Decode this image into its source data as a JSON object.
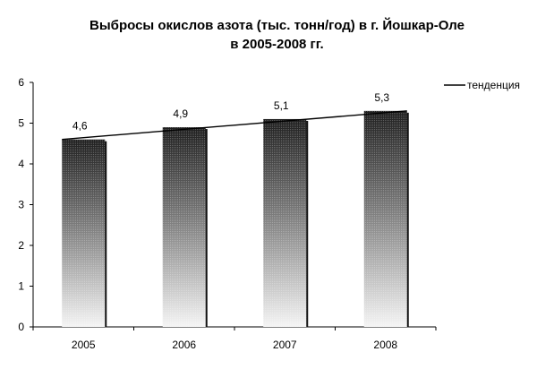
{
  "chart_data": {
    "type": "bar",
    "title_line1": "Выбросы окислов азота (тыс. тонн/год) в г. Йошкар-Оле",
    "title_line2": "в 2005-2008 гг.",
    "categories": [
      "2005",
      "2006",
      "2007",
      "2008"
    ],
    "values": [
      4.6,
      4.9,
      5.1,
      5.3
    ],
    "value_labels": [
      "4,6",
      "4,9",
      "5,1",
      "5,3"
    ],
    "ylim": [
      0,
      6
    ],
    "yticks": [
      0,
      1,
      2,
      3,
      4,
      5,
      6
    ],
    "trendline": {
      "name": "тенденция",
      "start": 4.6,
      "end": 5.3
    },
    "legend_position": "top-right",
    "colors": {
      "bar_top": "#222222",
      "bar_bottom": "#ffffff",
      "trend": "#000000"
    }
  }
}
